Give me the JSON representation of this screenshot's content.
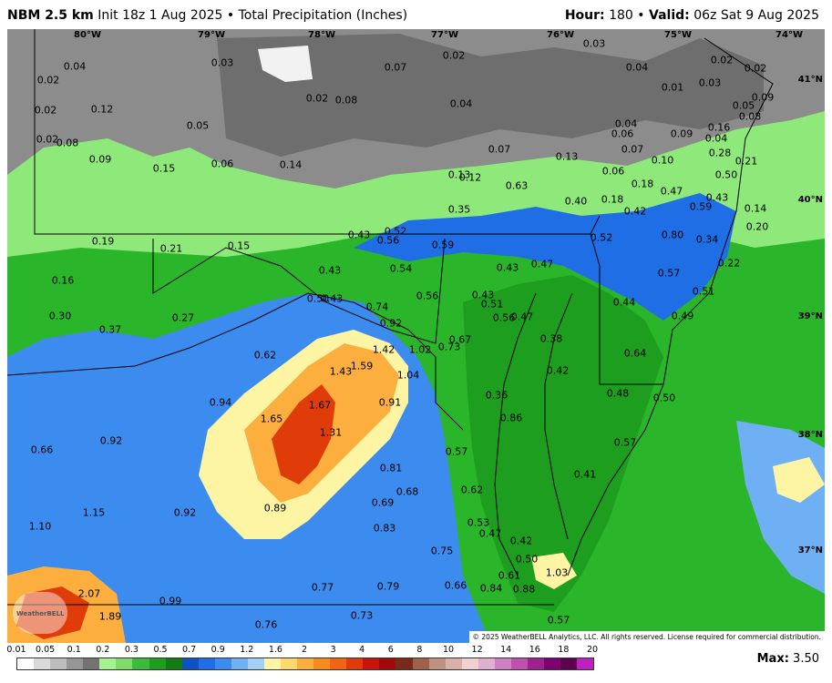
{
  "header": {
    "model": "NBM 2.5 km",
    "init": "Init 18z 1 Aug 2025",
    "field": "Total Precipitation (Inches)",
    "hour_label": "Hour:",
    "hour": "180",
    "valid_label": "Valid:",
    "valid": "06z Sat 9 Aug 2025"
  },
  "map": {
    "longitude_labels": [
      "80°W",
      "79°W",
      "78°W",
      "77°W",
      "76°W",
      "75°W",
      "74°W"
    ],
    "latitude_labels": [
      "41°N",
      "40°N",
      "39°N",
      "38°N",
      "37°N"
    ],
    "values": [
      "0.04",
      "0.02",
      "0.03",
      "0.02",
      "0.03",
      "0.02",
      "0.07",
      "0.04",
      "0.02",
      "0.02",
      "0.12",
      "0.02",
      "0.02",
      "0.08",
      "0.01",
      "0.03",
      "0.05",
      "0.09",
      "0.05",
      "0.04",
      "0.08",
      "0.04",
      "0.06",
      "0.07",
      "0.09",
      "0.16",
      "0.04",
      "0.08",
      "0.06",
      "0.14",
      "0.07",
      "0.28",
      "0.13",
      "0.15",
      "0.06",
      "0.10",
      "0.21",
      "0.09",
      "0.13",
      "0.12",
      "0.18",
      "0.50",
      "0.63",
      "0.40",
      "0.18",
      "0.47",
      "0.43",
      "0.35",
      "0.42",
      "0.59",
      "0.14",
      "0.20",
      "0.19",
      "0.21",
      "0.15",
      "0.43",
      "0.52",
      "0.56",
      "0.59",
      "0.52",
      "0.80",
      "0.34",
      "0.43",
      "0.54",
      "0.43",
      "0.47",
      "0.57",
      "0.22",
      "0.16",
      "0.43",
      "0.50",
      "0.56",
      "0.43",
      "0.51",
      "0.44",
      "0.51",
      "0.30",
      "0.27",
      "0.74",
      "0.92",
      "0.56",
      "0.47",
      "0.49",
      "0.37",
      "0.67",
      "0.38",
      "0.62",
      "1.42",
      "1.02",
      "0.73",
      "0.64",
      "1.43",
      "1.59",
      "1.04",
      "0.42",
      "0.94",
      "1.67",
      "0.91",
      "0.36",
      "0.48",
      "0.50",
      "1.65",
      "0.86",
      "1.31",
      "0.66",
      "0.92",
      "0.57",
      "0.57",
      "0.81",
      "0.41",
      "0.89",
      "0.69",
      "0.68",
      "0.62",
      "1.10",
      "1.15",
      "0.92",
      "0.83",
      "0.53",
      "0.47",
      "0.42",
      "0.75",
      "0.50",
      "2.07",
      "0.99",
      "0.77",
      "0.79",
      "0.66",
      "0.84",
      "0.88",
      "0.61",
      "1.03",
      "1.89",
      "0.76",
      "0.73",
      "0.57"
    ],
    "copyright": "© 2025 WeatherBELL Analytics, LLC. All rights reserved. License required for commercial distribution.",
    "logo_text": "WeatherBELL"
  },
  "legend": {
    "labels": [
      "0.01",
      "0.05",
      "0.1",
      "0.2",
      "0.3",
      "0.5",
      "0.7",
      "0.9",
      "1.2",
      "1.6",
      "2",
      "3",
      "4",
      "6",
      "8",
      "10",
      "12",
      "14",
      "16",
      "18",
      "20"
    ],
    "colors": [
      "#ffffff",
      "#d9d9d9",
      "#bdbdbd",
      "#969696",
      "#737373",
      "#a6f28f",
      "#7ddc6a",
      "#3cba3c",
      "#1e9e1e",
      "#147a14",
      "#1052c4",
      "#1f6ee6",
      "#3c8cf0",
      "#6fb0f5",
      "#a3d0f8",
      "#fdf5a3",
      "#fdd86a",
      "#fcaf3e",
      "#f88a1e",
      "#f06414",
      "#e03c0a",
      "#c8140a",
      "#a00a0a",
      "#7a2a1a",
      "#a0604a",
      "#c09080",
      "#d8b0a8",
      "#f0d0d0",
      "#e0b0d0",
      "#d080c0",
      "#c050b0",
      "#a02090",
      "#800070",
      "#600050",
      "#c020c0"
    ]
  },
  "max": {
    "label": "Max:",
    "value": "3.50"
  }
}
